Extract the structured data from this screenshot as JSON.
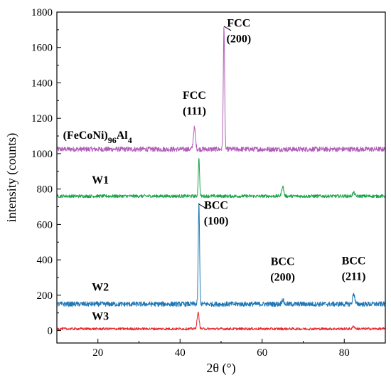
{
  "chart_data": {
    "type": "line",
    "title": "",
    "xlabel": "2θ (°)",
    "ylabel": "intensity (counts)",
    "xlim": [
      10,
      90
    ],
    "ylim": [
      -70,
      1800
    ],
    "x_ticks": [
      20,
      40,
      60,
      80
    ],
    "y_ticks": [
      0,
      200,
      400,
      600,
      800,
      1000,
      1200,
      1400,
      1600,
      1800
    ],
    "grid": false,
    "legend": "none",
    "series": [
      {
        "label_parts": [
          {
            "text": "(FeCoNi)",
            "sub": false
          },
          {
            "text": "96",
            "sub": true
          },
          {
            "text": "Al",
            "sub": false
          },
          {
            "text": "4",
            "sub": true
          }
        ],
        "color": "#b05db8",
        "baseline": 1025,
        "noise": 14,
        "label_x": 11.5,
        "label_y": 1085,
        "peaks": [
          {
            "x": 43.5,
            "y": 1145
          },
          {
            "x": 50.7,
            "y": 1720
          }
        ]
      },
      {
        "name": "W1",
        "color": "#1aa34a",
        "baseline": 760,
        "noise": 9,
        "label_x": 18.5,
        "label_y": 830,
        "peaks": [
          {
            "x": 44.6,
            "y": 970
          },
          {
            "x": 65.0,
            "y": 815
          },
          {
            "x": 82.3,
            "y": 780
          }
        ]
      },
      {
        "name": "W2",
        "color": "#1f77b4",
        "baseline": 150,
        "noise": 14,
        "label_x": 18.5,
        "label_y": 225,
        "peaks": [
          {
            "x": 44.6,
            "y": 715
          },
          {
            "x": 65.0,
            "y": 175
          },
          {
            "x": 82.3,
            "y": 210
          }
        ]
      },
      {
        "name": "W3",
        "color": "#e8262a",
        "baseline": 10,
        "noise": 7,
        "label_x": 18.5,
        "label_y": 60,
        "peaks": [
          {
            "x": 44.4,
            "y": 100
          },
          {
            "x": 82.3,
            "y": 25
          }
        ]
      }
    ],
    "annotations": [
      {
        "lines": [
          "FCC",
          "(111)"
        ],
        "x": 43.5,
        "y": 1310
      },
      {
        "lines": [
          "FCC",
          "(200)"
        ],
        "x": 54.3,
        "y": 1718,
        "leader_from": [
          50.7,
          1720
        ]
      },
      {
        "lines": [
          "BCC",
          "(100)"
        ],
        "x": 48.8,
        "y": 688,
        "leader_from": [
          44.6,
          715
        ]
      },
      {
        "lines": [
          "BCC",
          "(200)"
        ],
        "x": 65.0,
        "y": 370
      },
      {
        "lines": [
          "BCC",
          "(211)"
        ],
        "x": 82.3,
        "y": 375
      }
    ]
  }
}
